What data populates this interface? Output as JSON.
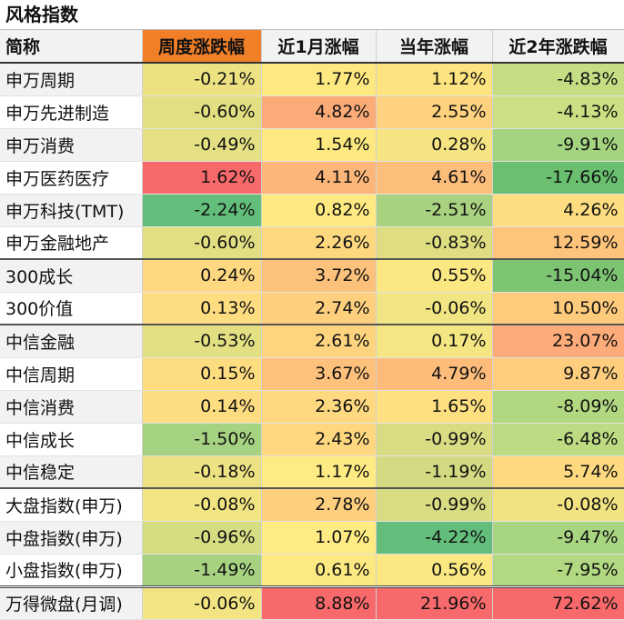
{
  "title": "风格指数",
  "columns": [
    "简称",
    "周度涨跌幅",
    "近1月涨幅",
    "当年涨幅",
    "近2年涨跌幅"
  ],
  "rows": [
    {
      "name": "申万周期",
      "group_start": false,
      "values": [
        "-0.21%",
        "1.77%",
        "1.12%",
        "-4.83%"
      ],
      "colors": [
        "#ece282",
        "#fee880",
        "#fee381",
        "#c5de84"
      ]
    },
    {
      "name": "申万先进制造",
      "group_start": false,
      "values": [
        "-0.60%",
        "4.82%",
        "2.55%",
        "-4.13%"
      ],
      "colors": [
        "#e2df83",
        "#fbab77",
        "#fed27e",
        "#cbe083"
      ]
    },
    {
      "name": "申万消费",
      "group_start": false,
      "values": [
        "-0.49%",
        "1.54%",
        "0.28%",
        "-9.91%"
      ],
      "colors": [
        "#e4e083",
        "#fee980",
        "#f6e482",
        "#a4d480"
      ]
    },
    {
      "name": "申万医药医疗",
      "group_start": false,
      "values": [
        "1.62%",
        "4.11%",
        "4.61%",
        "-17.66%"
      ],
      "colors": [
        "#f8696b",
        "#fcb679",
        "#fdbd7b",
        "#6ac06f"
      ]
    },
    {
      "name": "申万科技(TMT)",
      "group_start": false,
      "values": [
        "-2.24%",
        "0.82%",
        "-2.51%",
        "4.26%"
      ],
      "colors": [
        "#63be7b",
        "#ffea82",
        "#a8d27f",
        "#fedd80"
      ]
    },
    {
      "name": "申万金融地产",
      "group_start": false,
      "values": [
        "-0.60%",
        "2.26%",
        "-0.83%",
        "12.59%"
      ],
      "colors": [
        "#e2df83",
        "#fed87f",
        "#dedd82",
        "#fec47c"
      ]
    },
    {
      "name": "300成长",
      "group_start": true,
      "values": [
        "0.24%",
        "3.72%",
        "0.55%",
        "-15.04%"
      ],
      "colors": [
        "#fed880",
        "#fcc17b",
        "#fbe882",
        "#7cc472"
      ]
    },
    {
      "name": "300价值",
      "group_start": false,
      "values": [
        "0.13%",
        "2.74%",
        "-0.06%",
        "10.50%"
      ],
      "colors": [
        "#fedc80",
        "#fed07e",
        "#f0e582",
        "#fecb7d"
      ]
    },
    {
      "name": "中信金融",
      "group_start": true,
      "values": [
        "-0.53%",
        "2.61%",
        "0.17%",
        "23.07%"
      ],
      "colors": [
        "#e3e083",
        "#fed47f",
        "#f4e682",
        "#fdab78"
      ]
    },
    {
      "name": "中信周期",
      "group_start": false,
      "values": [
        "0.15%",
        "3.67%",
        "4.79%",
        "9.87%"
      ],
      "colors": [
        "#fedc80",
        "#fdc17b",
        "#fdbc7a",
        "#fecd7e"
      ]
    },
    {
      "name": "中信消费",
      "group_start": false,
      "values": [
        "0.14%",
        "2.36%",
        "1.65%",
        "-8.09%"
      ],
      "colors": [
        "#fedc80",
        "#fed97f",
        "#fee080",
        "#b1d881"
      ]
    },
    {
      "name": "中信成长",
      "group_start": false,
      "values": [
        "-1.50%",
        "2.43%",
        "-0.99%",
        "-6.48%"
      ],
      "colors": [
        "#a6d381",
        "#fed77f",
        "#d9dc82",
        "#bcdb82"
      ]
    },
    {
      "name": "中信稳定",
      "group_start": false,
      "values": [
        "-0.18%",
        "1.17%",
        "-1.19%",
        "5.74%"
      ],
      "colors": [
        "#ede283",
        "#ffeb83",
        "#d3da81",
        "#fed97f"
      ]
    },
    {
      "name": "大盘指数(申万)",
      "group_start": true,
      "values": [
        "-0.08%",
        "2.78%",
        "-0.99%",
        "-0.08%"
      ],
      "colors": [
        "#f2e482",
        "#fdcf7e",
        "#d9dc82",
        "#f2e382"
      ]
    },
    {
      "name": "中盘指数(申万)",
      "group_start": false,
      "values": [
        "-0.96%",
        "1.07%",
        "-4.22%",
        "-9.47%"
      ],
      "colors": [
        "#d6dc82",
        "#ffeb83",
        "#63be7b",
        "#a7d580"
      ]
    },
    {
      "name": "小盘指数(申万)",
      "group_start": false,
      "values": [
        "-1.49%",
        "0.61%",
        "0.56%",
        "-7.95%"
      ],
      "colors": [
        "#a7d381",
        "#fde982",
        "#fbe882",
        "#b2d881"
      ]
    },
    {
      "name": "万得微盘(月调)",
      "group_start": true,
      "last": true,
      "values": [
        "-0.06%",
        "8.88%",
        "21.96%",
        "72.62%"
      ],
      "colors": [
        "#f2e482",
        "#f8696b",
        "#f8696b",
        "#f8696b"
      ]
    }
  ]
}
